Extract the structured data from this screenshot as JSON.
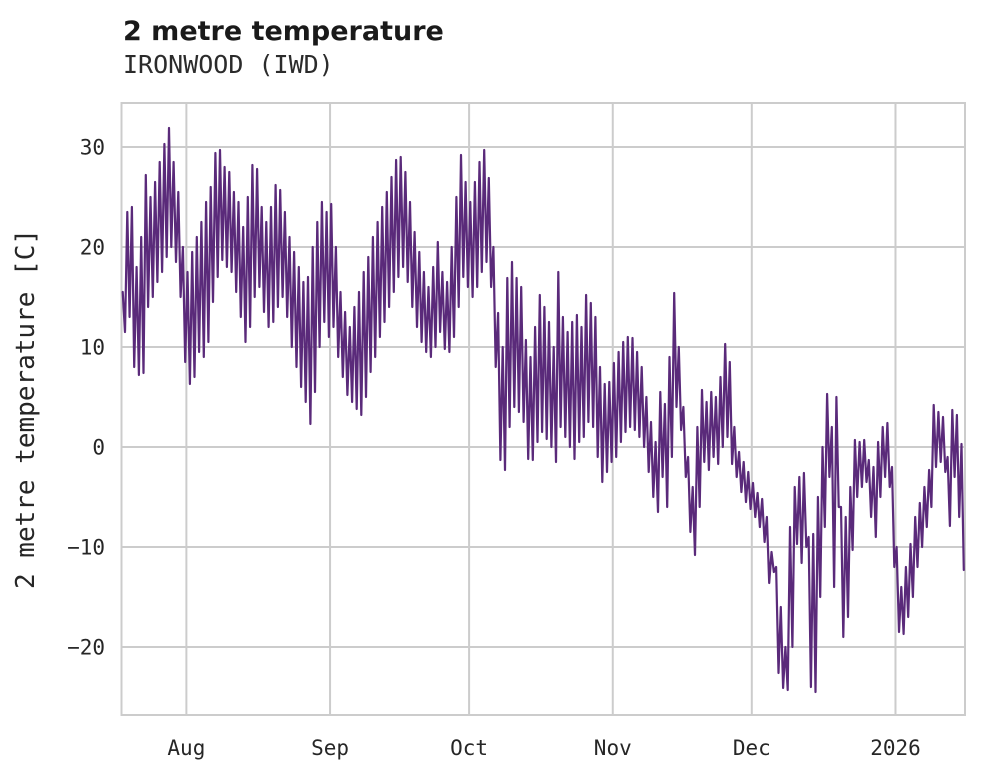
{
  "chart_data": {
    "type": "line",
    "title": "2 metre temperature",
    "subtitle": "IRONWOOD (IWD)",
    "ylabel": "2 metre temperature [C]",
    "line_color": "#5a2a7a",
    "grid_color": "#cccccc",
    "text_color": "#262626",
    "background_color": "#ffffff",
    "grid": true,
    "legend": false,
    "x_axis": {
      "start_date": "2025-07-18",
      "total_days": 182,
      "tick_labels": [
        "Aug",
        "Sep",
        "Oct",
        "Nov",
        "Dec",
        "2026"
      ],
      "tick_day_offsets": [
        14,
        45,
        75,
        106,
        136,
        167
      ]
    },
    "y_axis": {
      "ticks": [
        30,
        20,
        10,
        0,
        -10,
        -20
      ],
      "tick_labels": [
        "30",
        "20",
        "10",
        "0",
        "−10",
        "−20"
      ],
      "ylim": [
        -26.8,
        34.4
      ]
    },
    "daily_high": [
      15.5,
      23.5,
      24,
      18,
      21,
      27.2,
      25,
      26.5,
      28.5,
      30.3,
      31.9,
      28.5,
      25.5,
      20,
      17.5,
      19.5,
      21,
      22.5,
      24.5,
      26,
      29.4,
      29.7,
      28,
      27.5,
      25.5,
      24.5,
      22,
      25,
      28.2,
      27.8,
      24,
      22.5,
      24,
      26.2,
      25.7,
      23.5,
      21,
      19.5,
      18,
      16.5,
      17,
      20,
      22.5,
      24.5,
      23.5,
      24.3,
      20,
      15.5,
      13.5,
      12,
      14,
      15.5,
      17.5,
      19,
      21,
      22.5,
      24,
      25.5,
      27,
      28.7,
      29,
      27.5,
      24.5,
      21.5,
      19.5,
      17.5,
      16,
      18,
      20.5,
      17.5,
      16.5,
      20,
      25,
      29.2,
      26.5,
      24.5,
      26.5,
      28.5,
      29.7,
      26.9,
      20,
      13.4,
      10,
      16.9,
      18.5,
      16.9,
      16,
      10.7,
      9,
      12,
      15.2,
      14,
      12.5,
      10,
      17.5,
      13,
      11.5,
      12.5,
      13.2,
      12,
      15.2,
      14.4,
      13,
      8,
      6.3,
      6.5,
      8.4,
      9.5,
      10.5,
      11,
      10.9,
      9.5,
      8,
      5,
      2.5,
      0.5,
      5.5,
      4.3,
      9,
      15.4,
      10,
      4,
      -1,
      -4,
      2,
      5.7,
      4.5,
      5.5,
      5,
      7,
      10.3,
      8.5,
      2,
      -0.5,
      -1.5,
      -2.5,
      -3.6,
      -4.6,
      -5.2,
      -7,
      -10.5,
      -12,
      -16,
      -20,
      -8,
      -4,
      -3,
      -2.6,
      -9,
      -8.7,
      -5,
      0,
      5.3,
      2,
      5,
      -6,
      -7,
      -4,
      0.7,
      0.5,
      0.7,
      -1.3,
      -2,
      0.5,
      2,
      2.4,
      -2,
      -10,
      -14,
      -12,
      -9.7,
      -7,
      -5.6,
      -4,
      -2.3,
      4.2,
      3.5,
      3,
      -1,
      3.7,
      3.2,
      0.3
    ],
    "daily_low": [
      11.5,
      13,
      8,
      7.2,
      7.4,
      14,
      15,
      16.5,
      17.5,
      19,
      20,
      18.5,
      15,
      8.5,
      6.3,
      7,
      9.5,
      9,
      10.5,
      14.5,
      17,
      18.7,
      18,
      17.5,
      15.5,
      13,
      10.5,
      12,
      15,
      16,
      13.5,
      12,
      12.5,
      14,
      15,
      13,
      10,
      8,
      6,
      4.5,
      2.3,
      5.5,
      10,
      12.5,
      11,
      12,
      9,
      7,
      5.2,
      4.5,
      3.8,
      3.2,
      5,
      7.5,
      9,
      11,
      12.5,
      14,
      15.5,
      17,
      18,
      16.5,
      14,
      12,
      10.5,
      9.5,
      9,
      10,
      11.5,
      9.8,
      9.5,
      11,
      14,
      17,
      16,
      15,
      16,
      17.5,
      18.5,
      16,
      8,
      -1.3,
      -2.3,
      2,
      4,
      3.5,
      2.5,
      -1.2,
      -1.3,
      0.5,
      1.5,
      0.8,
      0,
      -1.5,
      2,
      1,
      0,
      -1.2,
      0.5,
      1,
      2.5,
      2,
      -1,
      -3.5,
      -2.5,
      -1.5,
      -1,
      0.5,
      1.5,
      2,
      1.7,
      1,
      0,
      -2.5,
      -5,
      -6.5,
      -3,
      -6,
      -1,
      4,
      1.7,
      -3,
      -8.5,
      -10.8,
      -6,
      -1.5,
      -2.3,
      -1,
      -1.7,
      0,
      1,
      -1.7,
      -3,
      -4.5,
      -5.5,
      -6.2,
      -7,
      -8,
      -9.5,
      -13.6,
      -12.5,
      -22.6,
      -24.1,
      -24.3,
      -20,
      -9.7,
      -11.6,
      -10,
      -24,
      -24.5,
      -15,
      -8,
      -3,
      -14,
      -6,
      -19,
      -17,
      -10.3,
      -5,
      -4,
      -3.5,
      -7,
      -9,
      -5,
      -3,
      -4,
      -12,
      -18.5,
      -18.7,
      -17,
      -15,
      -12,
      -10,
      -8,
      -6,
      -2,
      -1.5,
      -2.5,
      -7.9,
      -3,
      -7,
      -12.3
    ]
  }
}
